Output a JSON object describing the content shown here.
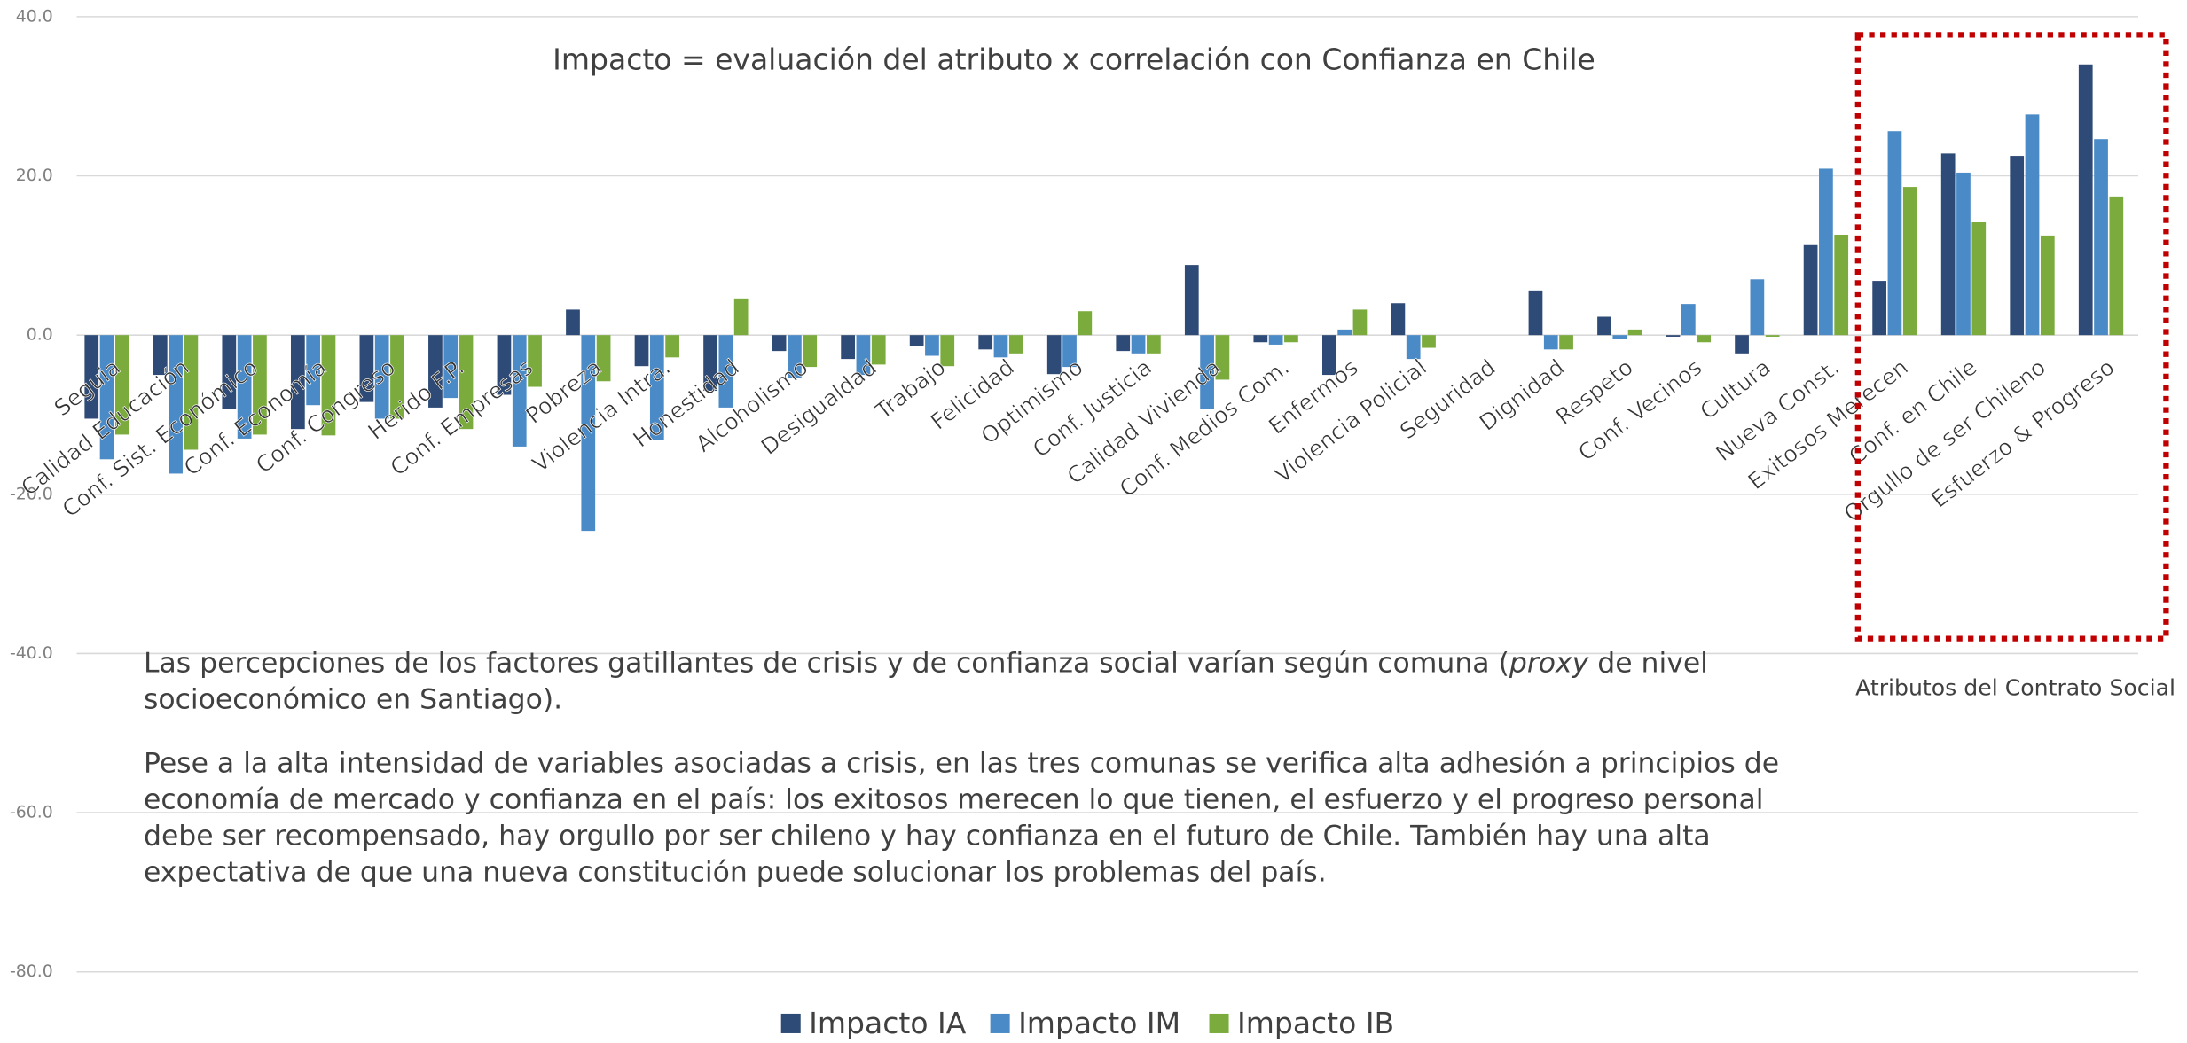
{
  "chart_data": {
    "type": "bar",
    "annotation": "Impacto = evaluación del atributo x correlación con Confianza en Chile",
    "box_label": "Atributos del Contrato Social",
    "categories": [
      "Seguia",
      "Calidad Educación",
      "Conf. Sist. Económico",
      "Conf. Economía",
      "Conf. Congreso",
      "Herido F.P.",
      "Conf. Empresas",
      "Pobreza",
      "Violencia Intra.",
      "Honestidad",
      "Alcoholismo",
      "Desigualdad",
      "Trabajo",
      "Felicidad",
      "Optimismo",
      "Conf. Justicia",
      "Calidad Vivienda",
      "Conf. Medios Com.",
      "Enfermos",
      "Violencia Policial",
      "Seguridad",
      "Dignidad",
      "Respeto",
      "Conf. Vecinos",
      "Cultura",
      "Nueva Const.",
      "Exitosos Merecen",
      "Conf. en Chile",
      "Orgullo de ser Chileno",
      "Esfuerzo & Progreso"
    ],
    "series": [
      {
        "name": "Impacto IA",
        "color": "#2e4a76",
        "values": [
          -10.5,
          -5,
          -9.3,
          -11.8,
          -8.4,
          -9.1,
          -7.5,
          3.2,
          -3.9,
          -7,
          -2,
          -3,
          -1.4,
          -1.8,
          -4.9,
          -2,
          8.8,
          -0.9,
          -5,
          4,
          0,
          5.6,
          2.3,
          -0.2,
          -2.3,
          11.4,
          6.8,
          22.8,
          22.5,
          34
        ]
      },
      {
        "name": "Impacto IM",
        "color": "#4a8ac6",
        "values": [
          -15.6,
          -17.4,
          -13,
          -8.8,
          -10.5,
          -7.9,
          -14,
          -24.6,
          -13.2,
          -9.1,
          -5.4,
          -5,
          -2.6,
          -2.8,
          -4,
          -2.3,
          -9.3,
          -1.2,
          0.7,
          -3,
          0,
          -1.8,
          -0.5,
          3.9,
          7,
          20.9,
          25.6,
          20.4,
          27.7,
          24.6
        ]
      },
      {
        "name": "Impacto IB",
        "color": "#7aab3c",
        "values": [
          -12.5,
          -14.4,
          -12.5,
          -12.6,
          -10.5,
          -11.8,
          -6.5,
          -5.8,
          -2.8,
          4.6,
          -4,
          -3.7,
          -3.9,
          -2.3,
          3,
          -2.3,
          -5.6,
          -0.9,
          3.2,
          -1.6,
          0,
          -1.8,
          0.7,
          -0.9,
          -0.2,
          12.6,
          18.6,
          14.2,
          12.5,
          17.4
        ]
      }
    ],
    "ylim": [
      -80,
      40
    ],
    "yticks": [
      {
        "value": -80,
        "label": "-80.0"
      },
      {
        "value": -60,
        "label": "-60.0"
      },
      {
        "value": -40,
        "label": "-40.0"
      },
      {
        "value": -20,
        "label": "-20.0"
      },
      {
        "value": 0,
        "label": "0.0"
      },
      {
        "value": 20,
        "label": "20.0"
      },
      {
        "value": 40,
        "label": "40.0"
      }
    ],
    "grid": true,
    "legend": "bottom",
    "paragraphs": [
      [
        "Las percepciones de los factores gatillantes de crisis y de confianza social varían según comuna  (",
        "proxy",
        " de nivel socioeconómico en Santiago)."
      ],
      [
        "Pese a la alta intensidad de variables asociadas a crisis, en las tres comunas se verifica alta adhesión a principios de economía de mercado y confianza en el país: los exitosos merecen lo que tienen, el esfuerzo y el progreso personal debe ser recompensado, hay orgullo por ser chileno y hay confianza en el futuro de Chile. También hay una alta expectativa de que una nueva constitución puede solucionar los problemas del país."
      ]
    ]
  }
}
